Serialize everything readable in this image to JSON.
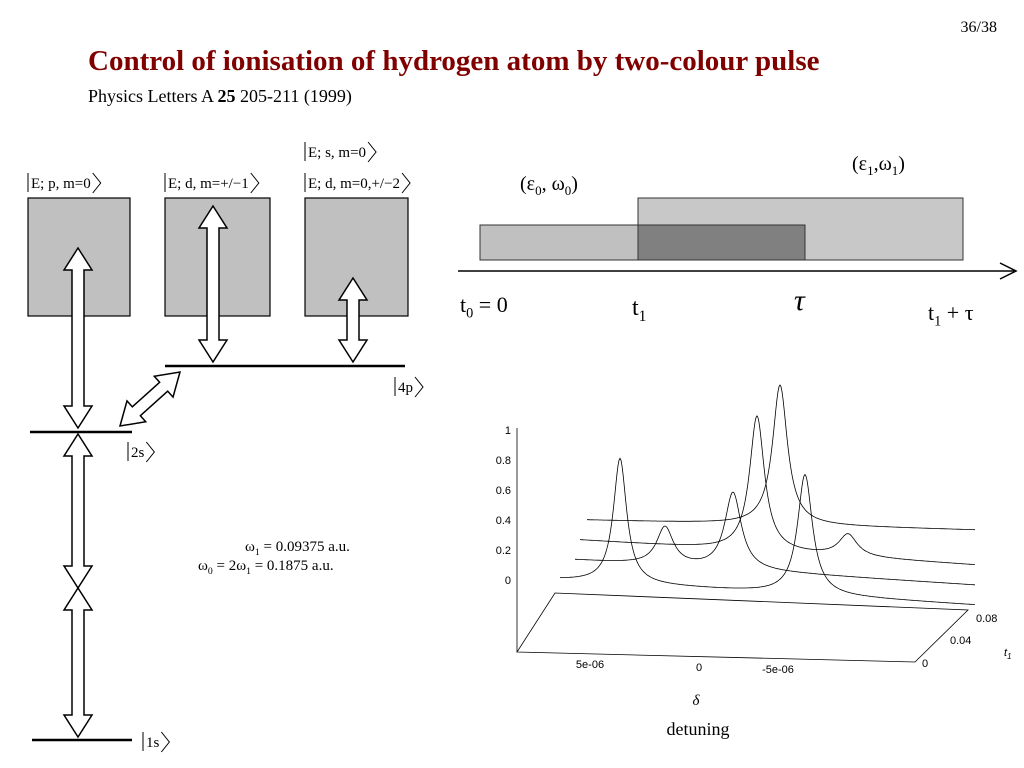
{
  "slide_number": "36/38",
  "title": "Control of ionisation of hydrogen atom by two-colour pulse",
  "reference": {
    "journal": "Physics Letters A",
    "volume": "25",
    "pages": "205-211",
    "year": "(1999)"
  },
  "levels": {
    "continuum_p": "E; p, m=0",
    "continuum_d1": "E; d, m=+/−1",
    "continuum_s": "E; s, m=0",
    "continuum_d2": "E; d, m=0,+/−2",
    "state_4p": "4p",
    "state_2s": "2s",
    "state_1s": "1s"
  },
  "frequencies": [
    [
      "ω",
      "1",
      " = 0.09375 a.u."
    ],
    [
      "ω",
      "0",
      " = 2ω",
      "1",
      " = 0.1875 a.u."
    ]
  ],
  "pulses": {
    "pulse_0": [
      "(ε",
      "0",
      ", ω",
      "0",
      ")"
    ],
    "pulse_1": [
      "(ε",
      "1",
      ",ω",
      "1",
      ")"
    ]
  },
  "time_axis": {
    "start": [
      "t",
      "0",
      " = 0"
    ],
    "t1": [
      "t",
      "1"
    ],
    "tau": [
      "τ"
    ],
    "end": [
      "t",
      "1",
      " + τ"
    ]
  },
  "plot": {
    "yticks": [
      "1",
      "0.8",
      "0.6",
      "0.4",
      "0.2",
      "0"
    ],
    "xticks": [
      "5e-06",
      "0",
      "-5e-06"
    ],
    "zticks": [
      "0.08",
      "0.04",
      "0"
    ],
    "z_label": [
      "t",
      "1"
    ],
    "x_symbol": "δ",
    "x_label": "detuning"
  }
}
